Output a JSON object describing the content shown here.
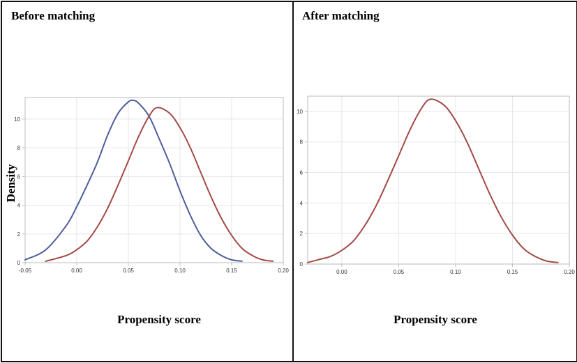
{
  "panels": [
    {
      "title": "Before matching",
      "xlabel": "Propensity score",
      "ylabel": "Density"
    },
    {
      "title": "After matching",
      "xlabel": "Propensity score",
      "ylabel": ""
    }
  ],
  "colors": {
    "series_blue": "#4e5e9b",
    "series_red": "#a24a45",
    "grid": "#e6e6ee",
    "axis": "#bbbbbb",
    "tick_text": "#333333"
  },
  "chart_data": [
    {
      "type": "line",
      "title": "Before matching",
      "xlabel": "Propensity score",
      "ylabel": "Density",
      "xlim": [
        -0.05,
        0.2
      ],
      "ylim": [
        0,
        11.5
      ],
      "xticks": [
        "-0.05",
        "0.00",
        "0.05",
        "0.10",
        "0.15",
        "0.20"
      ],
      "xtick_values": [
        -0.05,
        0.0,
        0.05,
        0.1,
        0.15,
        0.2
      ],
      "yticks": [
        "0",
        "2",
        "4",
        "6",
        "8",
        "10"
      ],
      "ytick_values": [
        0,
        2,
        4,
        6,
        8,
        10
      ],
      "grid": true,
      "series": [
        {
          "color": "#4e5e9b",
          "x": [
            -0.05,
            -0.03,
            -0.01,
            0.0,
            0.01,
            0.02,
            0.03,
            0.04,
            0.05,
            0.055,
            0.06,
            0.07,
            0.08,
            0.09,
            0.1,
            0.11,
            0.12,
            0.13,
            0.14,
            0.15,
            0.16
          ],
          "y": [
            0.2,
            0.9,
            2.6,
            3.9,
            5.4,
            7.0,
            8.9,
            10.4,
            11.2,
            11.3,
            11.1,
            10.2,
            8.6,
            6.9,
            5.0,
            3.3,
            1.9,
            1.0,
            0.5,
            0.2,
            0.1
          ]
        },
        {
          "color": "#a24a45",
          "x": [
            -0.03,
            -0.01,
            0.0,
            0.01,
            0.02,
            0.03,
            0.04,
            0.05,
            0.06,
            0.07,
            0.078,
            0.09,
            0.1,
            0.11,
            0.12,
            0.13,
            0.14,
            0.15,
            0.16,
            0.17,
            0.18,
            0.19
          ],
          "y": [
            0.1,
            0.5,
            0.9,
            1.5,
            2.5,
            3.8,
            5.4,
            7.1,
            8.8,
            10.2,
            10.8,
            10.4,
            9.4,
            8.0,
            6.3,
            4.6,
            3.1,
            1.9,
            1.0,
            0.5,
            0.2,
            0.1
          ]
        }
      ]
    },
    {
      "type": "line",
      "title": "After matching",
      "xlabel": "Propensity score",
      "ylabel": "",
      "xlim": [
        -0.03,
        0.2
      ],
      "ylim": [
        0,
        11.0
      ],
      "xticks": [
        "0.00",
        "0.05",
        "0.10",
        "0.15",
        "0.20"
      ],
      "xtick_values": [
        0.0,
        0.05,
        0.1,
        0.15,
        0.2
      ],
      "yticks": [
        "0",
        "2",
        "4",
        "6",
        "8",
        "10"
      ],
      "ytick_values": [
        0,
        2,
        4,
        6,
        8,
        10
      ],
      "grid": true,
      "series": [
        {
          "color": "#a24a45",
          "x": [
            -0.03,
            -0.02,
            -0.01,
            0.0,
            0.01,
            0.02,
            0.03,
            0.04,
            0.05,
            0.06,
            0.07,
            0.078,
            0.09,
            0.1,
            0.11,
            0.12,
            0.13,
            0.14,
            0.15,
            0.16,
            0.17,
            0.18,
            0.19
          ],
          "y": [
            0.1,
            0.3,
            0.5,
            0.9,
            1.5,
            2.5,
            3.8,
            5.4,
            7.1,
            8.8,
            10.2,
            10.8,
            10.4,
            9.4,
            8.0,
            6.3,
            4.6,
            3.1,
            1.9,
            1.0,
            0.5,
            0.2,
            0.1
          ]
        }
      ]
    }
  ]
}
